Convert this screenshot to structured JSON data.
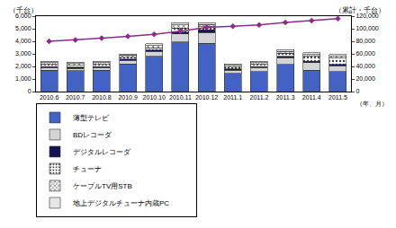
{
  "chart_data": {
    "type": "bar",
    "stacked": true,
    "grid": false,
    "legend": "bottom",
    "y_label": "（千台）",
    "y2_label": "（累計・千台）",
    "x_label": "（年、月）",
    "categories": [
      "2010.6",
      "2010.7",
      "2010.8",
      "2010.9",
      "2010.10",
      "2010.11",
      "2010.12",
      "2011.1",
      "2011.2",
      "2011.3",
      "2011.4",
      "2011.5"
    ],
    "ylim": [
      0,
      6000
    ],
    "yticks": [
      0,
      {
        "value": 1000,
        "label": "1,000"
      },
      {
        "value": 2000,
        "label": "2,000"
      },
      {
        "value": 3000,
        "label": "3,000"
      },
      {
        "value": 4000,
        "label": "4,000"
      },
      {
        "value": 5000,
        "label": "5,000"
      },
      {
        "value": 6000,
        "label": "6,000"
      }
    ],
    "y2lim": [
      0,
      120000
    ],
    "y2ticks": [
      0,
      {
        "value": 20000,
        "label": "20,000"
      },
      {
        "value": 40000,
        "label": "40,000"
      },
      {
        "value": 60000,
        "label": "60,000"
      },
      {
        "value": 80000,
        "label": "80,000"
      },
      {
        "value": 100000,
        "label": "100,000"
      },
      {
        "value": 120000,
        "label": "120,000"
      }
    ],
    "series": [
      {
        "name": "薄型テレビ",
        "type": "bar",
        "color": "#4363c4",
        "values": [
          1700,
          1650,
          1700,
          2200,
          2800,
          3950,
          3850,
          1450,
          1600,
          2150,
          1700,
          1600
        ]
      },
      {
        "name": "BDレコーダ",
        "type": "bar",
        "color": "#d4d4d4",
        "values": [
          200,
          200,
          200,
          300,
          400,
          650,
          850,
          250,
          300,
          550,
          600,
          450
        ]
      },
      {
        "name": "デジタルレコーダ",
        "type": "bar",
        "color": "#141450",
        "values": [
          100,
          100,
          100,
          100,
          100,
          150,
          200,
          100,
          100,
          100,
          100,
          100
        ]
      },
      {
        "name": "チューナ",
        "type": "bar",
        "color": "#ffffff",
        "values": [
          150,
          150,
          150,
          150,
          200,
          300,
          250,
          150,
          150,
          250,
          400,
          500
        ]
      },
      {
        "name": "ケーブルTV用STB",
        "type": "bar",
        "color": "#ffffff",
        "values": [
          150,
          150,
          150,
          150,
          150,
          250,
          200,
          150,
          150,
          150,
          150,
          150
        ]
      },
      {
        "name": "地上デジタルチューナ内蔵PC",
        "type": "bar",
        "color": "#e6e6e6",
        "values": [
          100,
          100,
          100,
          100,
          150,
          200,
          150,
          100,
          100,
          150,
          150,
          150
        ]
      },
      {
        "name": "累計",
        "type": "line",
        "axis": "y2",
        "color": "#8b2a8b",
        "marker": "diamond",
        "values": [
          80000,
          82000,
          85000,
          88000,
          91000,
          96000,
          102000,
          104000,
          106000,
          110000,
          113000,
          116000
        ]
      }
    ]
  }
}
